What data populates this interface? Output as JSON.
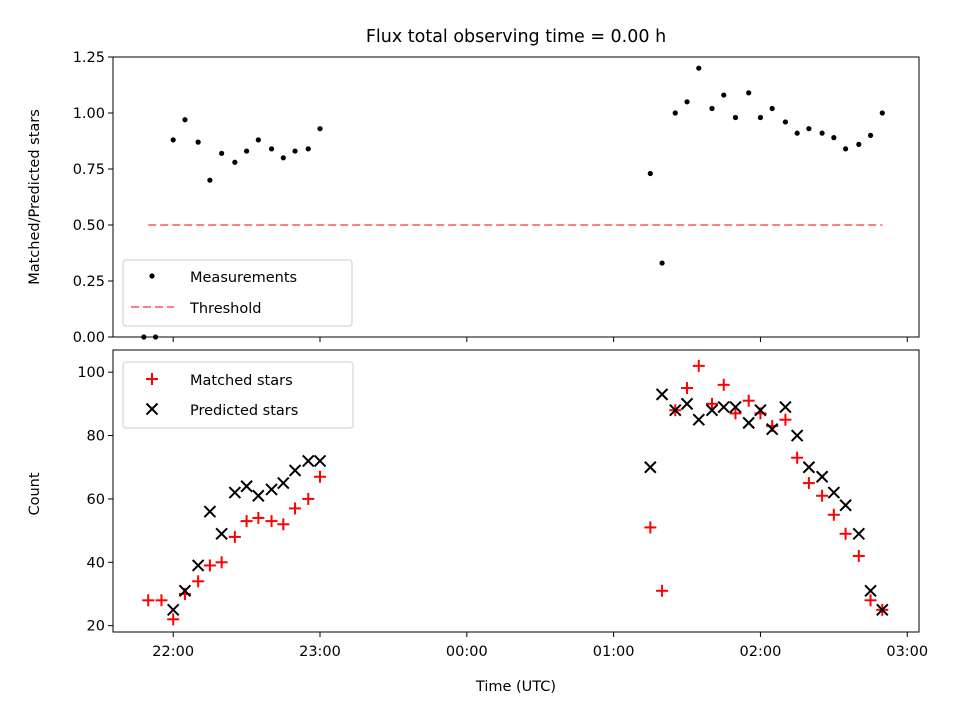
{
  "chart_data": [
    {
      "type": "scatter",
      "title": "Flux total observing time = 0.00 h",
      "xlabel": "",
      "ylabel": "Matched/Predicted stars",
      "ylim": [
        0,
        1.25
      ],
      "yticks": [
        "0.00",
        "0.25",
        "0.50",
        "0.75",
        "1.00",
        "1.25"
      ],
      "legend_position": "lower-left",
      "series": [
        {
          "name": "Measurements",
          "marker": "dot",
          "color": "#000000",
          "x": [
            -2.2,
            -2.12,
            -2.0,
            -1.92,
            -1.83,
            -1.75,
            -1.67,
            -1.58,
            -1.5,
            -1.42,
            -1.33,
            -1.25,
            -1.17,
            -1.08,
            -1.0,
            1.25,
            1.33,
            1.42,
            1.5,
            1.58,
            1.67,
            1.75,
            1.83,
            1.92,
            2.0,
            2.08,
            2.17,
            2.25,
            2.33,
            2.42,
            2.5,
            2.58,
            2.67,
            2.75,
            2.83
          ],
          "y": [
            0.0,
            0.0,
            0.88,
            0.97,
            0.87,
            0.7,
            0.82,
            0.78,
            0.83,
            0.88,
            0.84,
            0.8,
            0.83,
            0.84,
            0.93,
            0.73,
            0.33,
            1.0,
            1.05,
            1.2,
            1.02,
            1.08,
            0.98,
            1.09,
            0.98,
            1.02,
            0.96,
            0.91,
            0.93,
            0.91,
            0.89,
            0.84,
            0.86,
            0.9,
            1.0
          ]
        },
        {
          "name": "Threshold",
          "marker": "dashed-line",
          "color": "#ff7f7f",
          "x": [
            -2.17,
            2.83
          ],
          "y": [
            0.5,
            0.5
          ]
        }
      ]
    },
    {
      "type": "scatter",
      "title": "",
      "xlabel": "Time (UTC)",
      "ylabel": "Count",
      "ylim": [
        18,
        107
      ],
      "yticks": [
        "20",
        "40",
        "60",
        "80",
        "100"
      ],
      "xticks": [
        "22:00",
        "23:00",
        "00:00",
        "01:00",
        "02:00",
        "03:00"
      ],
      "legend_position": "upper-left",
      "series": [
        {
          "name": "Matched stars",
          "marker": "plus",
          "color": "#ff0000",
          "x": [
            -2.17,
            -2.08,
            -2.0,
            -1.92,
            -1.83,
            -1.75,
            -1.67,
            -1.58,
            -1.5,
            -1.42,
            -1.33,
            -1.25,
            -1.17,
            -1.08,
            -1.0,
            1.25,
            1.33,
            1.42,
            1.5,
            1.58,
            1.67,
            1.75,
            1.83,
            1.92,
            2.0,
            2.08,
            2.17,
            2.25,
            2.33,
            2.42,
            2.5,
            2.58,
            2.67,
            2.75,
            2.83
          ],
          "y": [
            28,
            28,
            22,
            30,
            34,
            39,
            40,
            48,
            53,
            54,
            53,
            52,
            57,
            60,
            67,
            51,
            31,
            88,
            95,
            102,
            90,
            96,
            87,
            91,
            87,
            83,
            85,
            73,
            65,
            61,
            55,
            49,
            42,
            28,
            25
          ]
        },
        {
          "name": "Predicted stars",
          "marker": "x",
          "color": "#000000",
          "x": [
            -2.0,
            -1.92,
            -1.83,
            -1.75,
            -1.67,
            -1.58,
            -1.5,
            -1.42,
            -1.33,
            -1.25,
            -1.17,
            -1.08,
            -1.0,
            1.25,
            1.33,
            1.42,
            1.5,
            1.58,
            1.67,
            1.75,
            1.83,
            1.92,
            2.0,
            2.08,
            2.17,
            2.25,
            2.33,
            2.42,
            2.5,
            2.58,
            2.67,
            2.75,
            2.83
          ],
          "y": [
            25,
            31,
            39,
            56,
            49,
            62,
            64,
            61,
            63,
            65,
            69,
            72,
            72,
            70,
            93,
            88,
            90,
            85,
            88,
            89,
            89,
            84,
            88,
            82,
            89,
            80,
            70,
            67,
            62,
            58,
            49,
            31,
            25
          ]
        }
      ]
    }
  ]
}
